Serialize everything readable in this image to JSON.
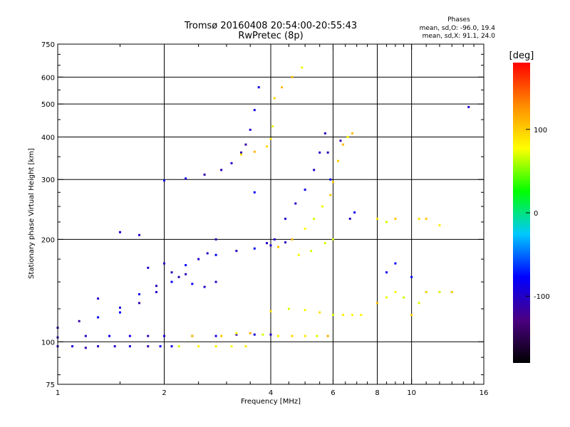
{
  "chart_data": {
    "type": "scatter",
    "title": "Tromsø 20160408 20:54:00-20:55:43",
    "subtitle": "RwPretec (8p)",
    "xlabel": "Frequency [MHz]",
    "ylabel": "Stationary phase Virtual Height [km]",
    "x_scale": "log",
    "y_scale": "log",
    "xlim": [
      1,
      16
    ],
    "ylim": [
      75,
      750
    ],
    "x_ticks": [
      1,
      2,
      4,
      6,
      8,
      10,
      16
    ],
    "x_tick_labels": [
      "1",
      "2",
      "4",
      "6",
      "8",
      "10",
      "16"
    ],
    "x_minor_ticks": [
      1.5,
      2.5,
      3,
      3.5,
      4.5,
      5,
      5.5,
      6.5,
      7,
      7.5,
      8.5,
      9,
      9.5,
      11,
      12,
      13,
      14,
      15
    ],
    "x_gridlines": [
      2,
      4,
      6,
      8,
      10
    ],
    "y_ticks": [
      75,
      100,
      200,
      300,
      400,
      500,
      600,
      750
    ],
    "y_tick_labels": [
      "75",
      "100",
      "200",
      "300",
      "400",
      "500",
      "600",
      "750"
    ],
    "y_minor_ticks": [
      80,
      90,
      125,
      150,
      175,
      225,
      250,
      275,
      350,
      450,
      550,
      650,
      700
    ],
    "y_gridlines": [
      100,
      200,
      300,
      400,
      500,
      600
    ],
    "grid": true,
    "legend_title": "Phases",
    "legend_lines": [
      "mean, sd,O: -96.0, 19.4",
      "mean, sd,X:  91.1, 24.0"
    ],
    "colorbar": {
      "label": "[deg]",
      "range": [
        -180,
        180
      ],
      "tick_values": [
        100,
        0,
        -100
      ],
      "tick_labels": [
        "100",
        "0",
        "-100"
      ],
      "colormap": "rainbow (black-purple-blue-cyan-green-yellow-orange-red)",
      "stops": [
        "#000000",
        "#4b0082",
        "#0000ff",
        "#00c8ff",
        "#00ff00",
        "#ffff00",
        "#ff8c00",
        "#ff0000"
      ]
    },
    "series": [
      {
        "group": "O",
        "mean_phase": -96.0,
        "sd_phase": 19.4,
        "points": [
          [
            1.0,
            97
          ],
          [
            1.1,
            97
          ],
          [
            1.2,
            96
          ],
          [
            1.3,
            97
          ],
          [
            1.45,
            97
          ],
          [
            1.6,
            97
          ],
          [
            1.8,
            97
          ],
          [
            1.95,
            97
          ],
          [
            2.1,
            97
          ],
          [
            1.0,
            103
          ],
          [
            1.2,
            104
          ],
          [
            1.4,
            104
          ],
          [
            1.6,
            104
          ],
          [
            1.8,
            104
          ],
          [
            2.0,
            104
          ],
          [
            2.4,
            104
          ],
          [
            2.8,
            104
          ],
          [
            3.2,
            105
          ],
          [
            3.6,
            105
          ],
          [
            4.0,
            105
          ],
          [
            1.0,
            110
          ],
          [
            1.15,
            115
          ],
          [
            1.3,
            118
          ],
          [
            1.5,
            122
          ],
          [
            1.7,
            130
          ],
          [
            1.9,
            140
          ],
          [
            2.1,
            150
          ],
          [
            2.3,
            158
          ],
          [
            1.3,
            134
          ],
          [
            1.5,
            126
          ],
          [
            1.7,
            138
          ],
          [
            1.9,
            146
          ],
          [
            2.1,
            160
          ],
          [
            2.3,
            168
          ],
          [
            2.5,
            175
          ],
          [
            2.65,
            182
          ],
          [
            1.8,
            165
          ],
          [
            2.0,
            170
          ],
          [
            2.2,
            155
          ],
          [
            2.4,
            148
          ],
          [
            2.6,
            145
          ],
          [
            2.8,
            150
          ],
          [
            2.8,
            200
          ],
          [
            2.8,
            180
          ],
          [
            3.2,
            185
          ],
          [
            3.6,
            188
          ],
          [
            4.0,
            192
          ],
          [
            4.4,
            196
          ],
          [
            1.5,
            210
          ],
          [
            1.7,
            206
          ],
          [
            2.0,
            298
          ],
          [
            2.3,
            302
          ],
          [
            2.6,
            310
          ],
          [
            2.9,
            320
          ],
          [
            3.1,
            335
          ],
          [
            3.3,
            360
          ],
          [
            3.4,
            380
          ],
          [
            3.5,
            420
          ],
          [
            3.6,
            480
          ],
          [
            3.7,
            560
          ],
          [
            3.6,
            275
          ],
          [
            3.9,
            195
          ],
          [
            4.1,
            200
          ],
          [
            4.4,
            230
          ],
          [
            4.7,
            255
          ],
          [
            5.0,
            280
          ],
          [
            5.3,
            320
          ],
          [
            5.5,
            360
          ],
          [
            5.7,
            410
          ],
          [
            5.8,
            360
          ],
          [
            5.9,
            300
          ],
          [
            6.3,
            390
          ],
          [
            6.7,
            230
          ],
          [
            6.9,
            240
          ],
          [
            8.5,
            160
          ],
          [
            9.0,
            170
          ],
          [
            10.0,
            155
          ],
          [
            11.0,
            140
          ],
          [
            12.0,
            140
          ],
          [
            13.0,
            140
          ],
          [
            14.5,
            490
          ]
        ]
      },
      {
        "group": "X",
        "mean_phase": 91.1,
        "sd_phase": 24.0,
        "points": [
          [
            2.2,
            97
          ],
          [
            2.5,
            97
          ],
          [
            2.8,
            97
          ],
          [
            3.1,
            97
          ],
          [
            3.4,
            97
          ],
          [
            2.4,
            104
          ],
          [
            2.9,
            104
          ],
          [
            3.2,
            106
          ],
          [
            3.5,
            106
          ],
          [
            3.8,
            105
          ],
          [
            4.2,
            104
          ],
          [
            4.6,
            104
          ],
          [
            5.0,
            104
          ],
          [
            5.4,
            104
          ],
          [
            5.8,
            104
          ],
          [
            3.3,
            355
          ],
          [
            3.6,
            362
          ],
          [
            3.9,
            375
          ],
          [
            4.0,
            395
          ],
          [
            4.05,
            430
          ],
          [
            4.2,
            190
          ],
          [
            4.6,
            200
          ],
          [
            5.0,
            215
          ],
          [
            5.3,
            230
          ],
          [
            5.6,
            250
          ],
          [
            5.9,
            270
          ],
          [
            6.0,
            295
          ],
          [
            6.2,
            340
          ],
          [
            6.4,
            380
          ],
          [
            6.6,
            400
          ],
          [
            6.8,
            410
          ],
          [
            4.8,
            180
          ],
          [
            5.2,
            185
          ],
          [
            5.7,
            195
          ],
          [
            6.0,
            200
          ],
          [
            4.1,
            520
          ],
          [
            4.3,
            560
          ],
          [
            4.6,
            600
          ],
          [
            4.9,
            640
          ],
          [
            4.0,
            123
          ],
          [
            4.5,
            125
          ],
          [
            5.0,
            124
          ],
          [
            5.5,
            122
          ],
          [
            6.0,
            120
          ],
          [
            6.4,
            120
          ],
          [
            6.8,
            120
          ],
          [
            7.2,
            120
          ],
          [
            8.0,
            130
          ],
          [
            8.5,
            135
          ],
          [
            9.0,
            140
          ],
          [
            9.5,
            135
          ],
          [
            10.0,
            120
          ],
          [
            10.5,
            130
          ],
          [
            11.0,
            140
          ],
          [
            12.0,
            140
          ],
          [
            13.0,
            140
          ],
          [
            8.0,
            230
          ],
          [
            8.5,
            225
          ],
          [
            9.0,
            230
          ],
          [
            10.5,
            230
          ],
          [
            11.0,
            230
          ],
          [
            12.0,
            220
          ]
        ]
      }
    ]
  }
}
